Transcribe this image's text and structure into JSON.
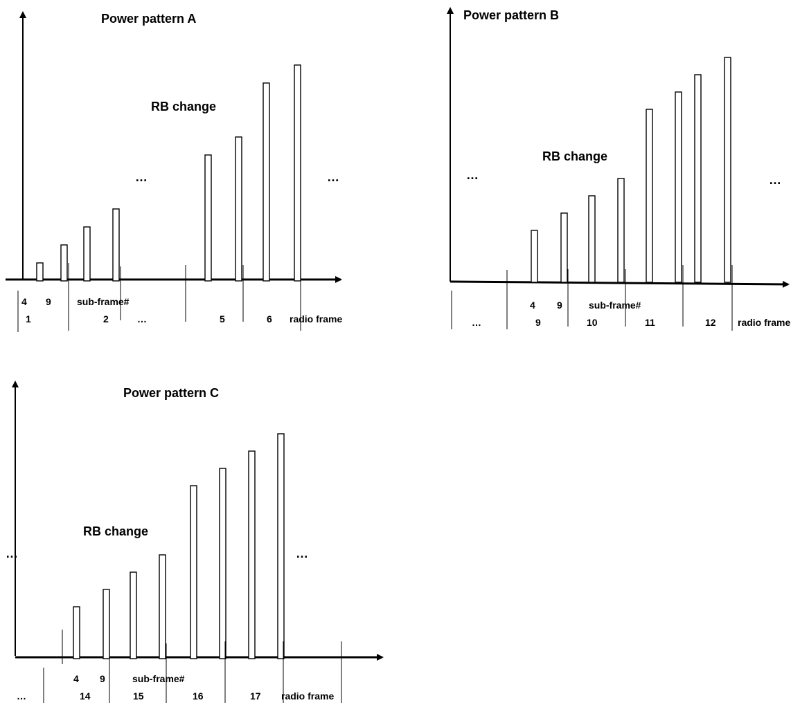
{
  "colors": {
    "stroke": "#000000",
    "background": "#ffffff",
    "bar_fill": "#ffffff"
  },
  "panels": [
    {
      "id": "A",
      "title": "Power pattern A",
      "rb_label": "RB change",
      "ellipses": [
        "…",
        "…",
        "…"
      ],
      "subframe_labels": [
        "4",
        "9",
        "sub-frame#"
      ],
      "frame_numbers": [
        "1",
        "2",
        "5",
        "6"
      ],
      "radio_frame_label": "radio frame",
      "bar_levels": [
        1,
        2,
        3,
        4,
        7,
        8,
        11,
        12
      ]
    },
    {
      "id": "B",
      "title": "Power pattern B",
      "rb_label": "RB change",
      "ellipses": [
        "…",
        "…",
        "…"
      ],
      "subframe_labels": [
        "4",
        "9",
        "sub-frame#"
      ],
      "frame_numbers": [
        "9",
        "10",
        "11",
        "12"
      ],
      "radio_frame_label": "radio frame",
      "bar_levels": [
        3,
        4,
        5,
        6,
        10,
        11,
        12,
        13
      ]
    },
    {
      "id": "C",
      "title": "Power pattern C",
      "rb_label": "RB change",
      "ellipses": [
        "…",
        "…",
        "…"
      ],
      "subframe_labels": [
        "4",
        "9",
        "sub-frame#"
      ],
      "frame_numbers": [
        "14",
        "15",
        "16",
        "17"
      ],
      "radio_frame_label": "radio frame",
      "bar_levels": [
        3,
        4,
        5,
        6,
        10,
        11,
        12,
        13
      ]
    }
  ]
}
